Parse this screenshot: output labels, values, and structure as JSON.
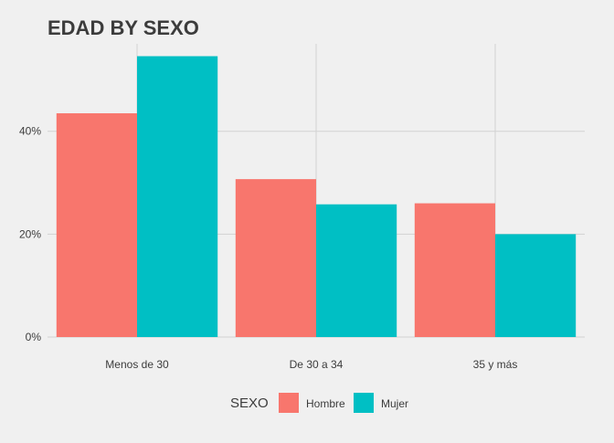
{
  "chart_data": {
    "type": "bar",
    "title": "EDAD BY SEXO",
    "xlabel": "",
    "ylabel": "",
    "categories": [
      "Menos de 30",
      "De 30 a 34",
      "35 y más"
    ],
    "series": [
      {
        "name": "Hombre",
        "values": [
          43.5,
          30.7,
          26.0
        ],
        "color": "#f8766d"
      },
      {
        "name": "Mujer",
        "values": [
          54.6,
          25.8,
          20.0
        ],
        "color": "#00bfc4"
      }
    ],
    "ylim": [
      0,
      57
    ],
    "yticks": [
      0,
      20,
      40
    ],
    "ytick_labels": [
      "0%",
      "20%",
      "40%"
    ],
    "legend": {
      "title": "SEXO",
      "position": "bottom"
    },
    "grid": true,
    "colors": {
      "background": "#f0f0f0",
      "grid": "#d2d2d2",
      "text": "#3c3c3c"
    }
  }
}
